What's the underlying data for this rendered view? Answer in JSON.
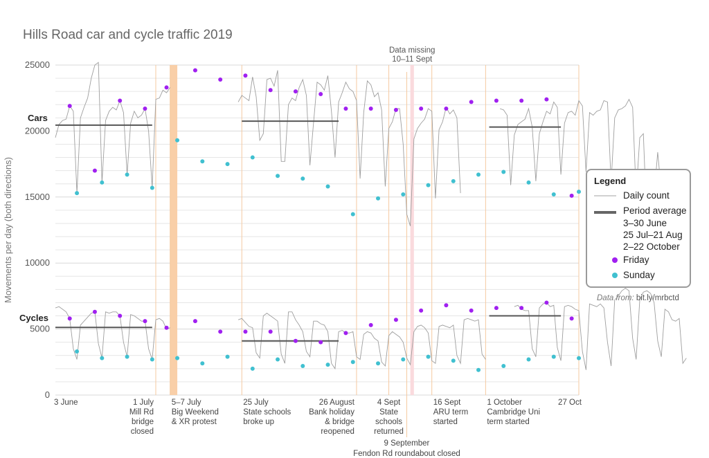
{
  "chart_data": {
    "type": "line",
    "title": "Hills Road car and cycle traffic 2019",
    "ylabel": "Movements per day (both directions)",
    "ylim": [
      0,
      25000
    ],
    "yticks": [
      0,
      5000,
      10000,
      15000,
      20000,
      25000
    ],
    "ytick_labels": [
      "0",
      "5000",
      "10000",
      "15000",
      "20000",
      "25000"
    ],
    "grid": true,
    "x_start": "2019-06-03",
    "x_end": "2019-10-27",
    "series_labels": {
      "cars": "Cars",
      "cycles": "Cycles"
    },
    "missing_data": {
      "start": "2019-09-10",
      "end": "2019-09-11",
      "label_line1": "Data missing",
      "label_line2": "10–11 Sept"
    },
    "highlight_period": {
      "start": "2019-07-05",
      "end": "2019-07-07"
    },
    "events": [
      {
        "date": "2019-06-03",
        "lines": [
          "3 June"
        ]
      },
      {
        "date": "2019-07-01",
        "lines": [
          "1 July",
          "Mill Rd",
          "bridge",
          "closed"
        ]
      },
      {
        "date": "2019-07-05",
        "lines": [
          "5–7 July",
          "Big Weekend",
          "& XR protest"
        ]
      },
      {
        "date": "2019-07-25",
        "lines": [
          "25 July",
          "State schools",
          "broke up"
        ]
      },
      {
        "date": "2019-08-26",
        "lines": [
          "26 August",
          "Bank holiday",
          "& bridge",
          "reopened"
        ]
      },
      {
        "date": "2019-09-04",
        "lines": [
          "4 Sept",
          "State",
          "schools",
          "returned"
        ]
      },
      {
        "date": "2019-09-09",
        "lines": [
          "9 September",
          "Fendon Rd roundabout closed"
        ]
      },
      {
        "date": "2019-09-16",
        "lines": [
          "16 Sept",
          "ARU term",
          "started"
        ]
      },
      {
        "date": "2019-10-01",
        "lines": [
          "1 October",
          "Cambridge Uni",
          "term started"
        ]
      },
      {
        "date": "2019-10-27",
        "lines": [
          "27 Oct"
        ]
      }
    ],
    "period_averages": [
      {
        "series": "cars",
        "start": "2019-06-03",
        "end": "2019-06-30",
        "value": 20450
      },
      {
        "series": "cars",
        "start": "2019-07-25",
        "end": "2019-08-21",
        "value": 20750
      },
      {
        "series": "cars",
        "start": "2019-10-02",
        "end": "2019-10-22",
        "value": 20300
      },
      {
        "series": "cycles",
        "start": "2019-06-03",
        "end": "2019-06-30",
        "value": 5120
      },
      {
        "series": "cycles",
        "start": "2019-07-25",
        "end": "2019-08-21",
        "value": 4100
      },
      {
        "series": "cycles",
        "start": "2019-10-02",
        "end": "2019-10-22",
        "value": 6000
      }
    ],
    "series": [
      {
        "name": "Cars",
        "key": "cars",
        "values": [
          19500,
          20500,
          20800,
          20900,
          21900,
          21500,
          15300,
          21000,
          21800,
          22500,
          24000,
          25000,
          25200,
          16100,
          20800,
          21500,
          21800,
          21600,
          22300,
          21400,
          16700,
          20600,
          21500,
          21000,
          21200,
          21700,
          20000,
          15700,
          22400,
          22500,
          23100,
          22900,
          23300,
          null,
          null,
          null,
          null,
          null,
          null,
          null,
          null,
          null,
          null,
          null,
          null,
          null,
          null,
          null,
          null,
          null,
          null,
          22200,
          22700,
          22500,
          22300,
          24100,
          22600,
          19300,
          19800,
          23900,
          24000,
          23400,
          24600,
          17700,
          17700,
          22000,
          22500,
          22300,
          23300,
          23900,
          22700,
          17400,
          20600,
          23700,
          23500,
          23100,
          24200,
          21500,
          18000,
          22200,
          22900,
          23700,
          23200,
          23000,
          22300,
          16400,
          21400,
          23800,
          23500,
          22600,
          22900,
          21600,
          15800,
          20200,
          20700,
          21700,
          21700,
          19000,
          13700,
          12800,
          19400,
          20200,
          20600,
          20900,
          21700,
          21500,
          14900,
          20100,
          20700,
          21800,
          21300,
          21600,
          21000,
          15300,
          null,
          null,
          null,
          null,
          null,
          null,
          null,
          null,
          null,
          null,
          21700,
          21600,
          21200,
          15900,
          19700,
          20500,
          20700,
          20900,
          21700,
          20300,
          16200,
          19800,
          20700,
          21500,
          21300,
          22200,
          21800,
          16700,
          20600,
          21400,
          21500,
          21200,
          22300,
          21900,
          16900,
          21400,
          21200,
          21500,
          21600,
          22300,
          22200,
          16100,
          21000,
          21600,
          21700,
          21900,
          22400,
          21800,
          15200,
          19500,
          19800,
          12700,
          12800,
          15100,
          18400,
          15400
        ]
      },
      {
        "name": "Cycles",
        "key": "cycles",
        "values": [
          6600,
          6700,
          6500,
          6300,
          5800,
          3500,
          2700,
          5300,
          5600,
          5900,
          6200,
          6300,
          3900,
          2800,
          6300,
          6200,
          6300,
          6300,
          6000,
          4000,
          2900,
          6100,
          6000,
          5800,
          5600,
          5600,
          3500,
          2700,
          5700,
          5800,
          5600,
          5000,
          5100,
          null,
          null,
          null,
          null,
          null,
          null,
          null,
          null,
          null,
          null,
          null,
          null,
          null,
          null,
          null,
          null,
          null,
          null,
          5700,
          5800,
          5500,
          5200,
          5100,
          3200,
          2800,
          6000,
          6200,
          6000,
          5800,
          5600,
          3100,
          2400,
          6300,
          6300,
          5700,
          5300,
          4800,
          3300,
          2900,
          5600,
          5600,
          5400,
          5300,
          4800,
          2400,
          2000,
          4800,
          4900,
          4700,
          4700,
          4800,
          2900,
          2700,
          4600,
          4800,
          4700,
          4300,
          4100,
          2500,
          2200,
          4500,
          4800,
          4600,
          4400,
          4000,
          2800,
          2300,
          4800,
          5200,
          5300,
          5100,
          4700,
          2600,
          2400,
          5200,
          5300,
          5200,
          5100,
          5300,
          3000,
          2400,
          5700,
          5800,
          5700,
          5600,
          5700,
          3100,
          2700,
          null,
          null,
          null,
          null,
          null,
          null,
          null,
          6700,
          6800,
          6500,
          6400,
          6400,
          3500,
          2900,
          6600,
          6900,
          7000,
          6700,
          6800,
          3600,
          2600,
          6700,
          6800,
          6700,
          6500,
          6400,
          3300,
          1900,
          6900,
          6800,
          6700,
          6900,
          6600,
          4000,
          2200,
          7200,
          7500,
          7900,
          8100,
          7900,
          4300,
          2700,
          7200,
          7800,
          7900,
          7700,
          7000,
          4100,
          2900,
          6500,
          6300,
          5700,
          5600,
          5800,
          2400,
          2800
        ]
      }
    ],
    "friday_points": {
      "cars": [
        {
          "date": "2019-06-07",
          "value": 21900
        },
        {
          "date": "2019-06-14",
          "value": 17000
        },
        {
          "date": "2019-06-21",
          "value": 22300
        },
        {
          "date": "2019-06-28",
          "value": 21700
        },
        {
          "date": "2019-07-04",
          "value": 23300
        },
        {
          "date": "2019-07-12",
          "value": 24600
        },
        {
          "date": "2019-07-19",
          "value": 23900
        },
        {
          "date": "2019-07-26",
          "value": 24200
        },
        {
          "date": "2019-08-02",
          "value": 23100
        },
        {
          "date": "2019-08-09",
          "value": 23000
        },
        {
          "date": "2019-08-16",
          "value": 22800
        },
        {
          "date": "2019-08-23",
          "value": 21700
        },
        {
          "date": "2019-08-30",
          "value": 21700
        },
        {
          "date": "2019-09-06",
          "value": 21600
        },
        {
          "date": "2019-09-13",
          "value": 21700
        },
        {
          "date": "2019-09-20",
          "value": 21700
        },
        {
          "date": "2019-09-27",
          "value": 22200
        },
        {
          "date": "2019-10-04",
          "value": 22300
        },
        {
          "date": "2019-10-11",
          "value": 22300
        },
        {
          "date": "2019-10-18",
          "value": 22400
        },
        {
          "date": "2019-10-25",
          "value": 15100
        }
      ],
      "cycles": [
        {
          "date": "2019-06-07",
          "value": 5800
        },
        {
          "date": "2019-06-14",
          "value": 6300
        },
        {
          "date": "2019-06-21",
          "value": 6000
        },
        {
          "date": "2019-06-28",
          "value": 5600
        },
        {
          "date": "2019-07-04",
          "value": 5100
        },
        {
          "date": "2019-07-12",
          "value": 5600
        },
        {
          "date": "2019-07-19",
          "value": 4800
        },
        {
          "date": "2019-07-26",
          "value": 4800
        },
        {
          "date": "2019-08-02",
          "value": 4800
        },
        {
          "date": "2019-08-09",
          "value": 4100
        },
        {
          "date": "2019-08-16",
          "value": 4000
        },
        {
          "date": "2019-08-23",
          "value": 4700
        },
        {
          "date": "2019-08-30",
          "value": 5300
        },
        {
          "date": "2019-09-06",
          "value": 5700
        },
        {
          "date": "2019-09-13",
          "value": 6400
        },
        {
          "date": "2019-09-20",
          "value": 6800
        },
        {
          "date": "2019-09-27",
          "value": 6400
        },
        {
          "date": "2019-10-04",
          "value": 6600
        },
        {
          "date": "2019-10-11",
          "value": 6600
        },
        {
          "date": "2019-10-18",
          "value": 7000
        },
        {
          "date": "2019-10-25",
          "value": 5800
        }
      ]
    },
    "sunday_points": {
      "cars": [
        {
          "date": "2019-06-09",
          "value": 15300
        },
        {
          "date": "2019-06-16",
          "value": 16100
        },
        {
          "date": "2019-06-23",
          "value": 16700
        },
        {
          "date": "2019-06-30",
          "value": 15700
        },
        {
          "date": "2019-07-07",
          "value": 19300
        },
        {
          "date": "2019-07-14",
          "value": 17700
        },
        {
          "date": "2019-07-21",
          "value": 17500
        },
        {
          "date": "2019-07-28",
          "value": 18000
        },
        {
          "date": "2019-08-04",
          "value": 16600
        },
        {
          "date": "2019-08-11",
          "value": 16400
        },
        {
          "date": "2019-08-18",
          "value": 15800
        },
        {
          "date": "2019-08-25",
          "value": 13700
        },
        {
          "date": "2019-09-01",
          "value": 14900
        },
        {
          "date": "2019-09-08",
          "value": 15200
        },
        {
          "date": "2019-09-15",
          "value": 15900
        },
        {
          "date": "2019-09-22",
          "value": 16200
        },
        {
          "date": "2019-09-29",
          "value": 16700
        },
        {
          "date": "2019-10-06",
          "value": 16900
        },
        {
          "date": "2019-10-13",
          "value": 16100
        },
        {
          "date": "2019-10-20",
          "value": 15200
        },
        {
          "date": "2019-10-27",
          "value": 15400
        }
      ],
      "cycles": [
        {
          "date": "2019-06-09",
          "value": 3300
        },
        {
          "date": "2019-06-16",
          "value": 2800
        },
        {
          "date": "2019-06-23",
          "value": 2900
        },
        {
          "date": "2019-06-30",
          "value": 2700
        },
        {
          "date": "2019-07-07",
          "value": 2800
        },
        {
          "date": "2019-07-14",
          "value": 2400
        },
        {
          "date": "2019-07-21",
          "value": 2900
        },
        {
          "date": "2019-07-28",
          "value": 2000
        },
        {
          "date": "2019-08-04",
          "value": 2700
        },
        {
          "date": "2019-08-11",
          "value": 2200
        },
        {
          "date": "2019-08-18",
          "value": 2300
        },
        {
          "date": "2019-08-25",
          "value": 2500
        },
        {
          "date": "2019-09-01",
          "value": 2400
        },
        {
          "date": "2019-09-08",
          "value": 2700
        },
        {
          "date": "2019-09-15",
          "value": 2900
        },
        {
          "date": "2019-09-22",
          "value": 2600
        },
        {
          "date": "2019-09-29",
          "value": 1900
        },
        {
          "date": "2019-10-06",
          "value": 2200
        },
        {
          "date": "2019-10-13",
          "value": 2700
        },
        {
          "date": "2019-10-20",
          "value": 2900
        },
        {
          "date": "2019-10-27",
          "value": 2800
        }
      ]
    },
    "colors": {
      "daily_line": "#9e9e9e",
      "average_line": "#555555",
      "friday": "#a020f0",
      "sunday": "#40c0d0",
      "event_line": "#f5c9a0",
      "highlight_band": "#f9cfa8",
      "missing_band": "#fadadd",
      "grid": "#e6e6e6"
    },
    "legend": {
      "title": "Legend",
      "daily": "Daily count",
      "average": "Period average",
      "average_periods": [
        "3–30 June",
        "25 Jul–21 Aug",
        "2–22 October"
      ],
      "friday": "Friday",
      "sunday": "Sunday",
      "placement": "right"
    },
    "credit": {
      "prefix": "Data from:",
      "link": "bit.ly/mrbctd"
    }
  }
}
